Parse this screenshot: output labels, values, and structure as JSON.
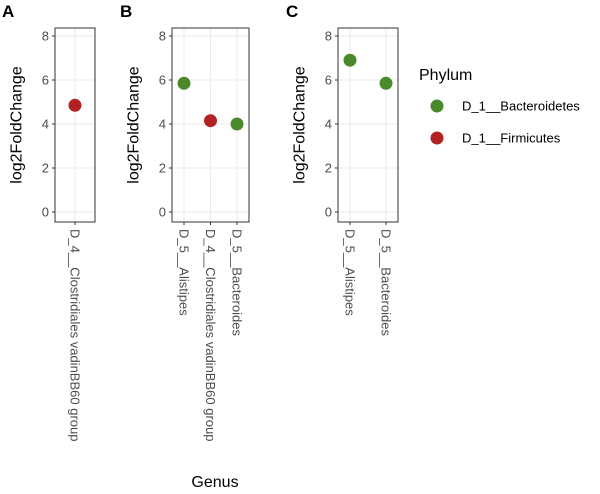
{
  "chart_data": {
    "type": "scatter",
    "legend": {
      "title": "Phylum",
      "placement": "right",
      "entries": [
        {
          "label": "D_1__Bacteroidetes",
          "color": "#4a8a2c"
        },
        {
          "label": "D_1__Firmicutes",
          "color": "#b22222"
        }
      ]
    },
    "xlabel": "Genus",
    "panels": [
      {
        "letter": "A",
        "ylabel": "log2FoldChange",
        "ylim": [
          0,
          8
        ],
        "yticks": [
          "0",
          "2",
          "4",
          "6",
          "8"
        ],
        "categories": [
          "D_4__Clostridiales vadinBB60 group"
        ],
        "points": [
          {
            "x": "D_4__Clostridiales vadinBB60 group",
            "y": 4.85,
            "phylum": "D_1__Firmicutes"
          }
        ]
      },
      {
        "letter": "B",
        "ylabel": "log2FoldChange",
        "ylim": [
          0,
          8
        ],
        "yticks": [
          "0",
          "2",
          "4",
          "6",
          "8"
        ],
        "categories": [
          "D_5__Alistipes",
          "D_4__Clostridiales vadinBB60 group",
          "D_5__Bacteroides"
        ],
        "points": [
          {
            "x": "D_5__Alistipes",
            "y": 5.85,
            "phylum": "D_1__Bacteroidetes"
          },
          {
            "x": "D_4__Clostridiales vadinBB60 group",
            "y": 4.15,
            "phylum": "D_1__Firmicutes"
          },
          {
            "x": "D_5__Bacteroides",
            "y": 4.0,
            "phylum": "D_1__Bacteroidetes"
          }
        ]
      },
      {
        "letter": "C",
        "ylabel": "log2FoldChange",
        "ylim": [
          0,
          8
        ],
        "yticks": [
          "0",
          "2",
          "4",
          "6",
          "8"
        ],
        "categories": [
          "D_5__Alistipes",
          "D_5__Bacteroides"
        ],
        "points": [
          {
            "x": "D_5__Alistipes",
            "y": 6.9,
            "phylum": "D_1__Bacteroidetes"
          },
          {
            "x": "D_5__Bacteroides",
            "y": 5.85,
            "phylum": "D_1__Bacteroidetes"
          }
        ]
      }
    ]
  }
}
